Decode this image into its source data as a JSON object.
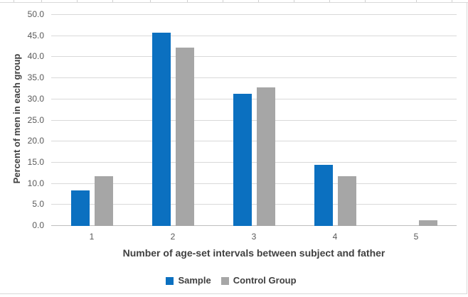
{
  "chart_data": {
    "type": "bar",
    "title": "",
    "categories": [
      "1",
      "2",
      "3",
      "4",
      "5"
    ],
    "series": [
      {
        "name": "Sample",
        "color": "#0b70c0",
        "values": [
          8.4,
          45.8,
          31.3,
          14.5,
          0
        ]
      },
      {
        "name": "Control Group",
        "color": "#a6a6a6",
        "values": [
          11.8,
          42.2,
          32.8,
          11.8,
          1.4
        ]
      }
    ],
    "xlabel": "Number of age-set intervals between subject and father",
    "ylabel": "Percent of men in each group",
    "ylim": [
      0,
      50
    ],
    "ytick_step": 5,
    "ytick_labels": [
      "0.0",
      "5.0",
      "10.0",
      "15.0",
      "20.0",
      "25.0",
      "30.0",
      "35.0",
      "40.0",
      "45.0",
      "50.0"
    ],
    "grid": true,
    "legend_position": "bottom"
  },
  "colors": {
    "gridline": "#d9d9d9",
    "axis_line": "#bfbfbf",
    "tick_text": "#595959",
    "title_text": "#404040",
    "background": "#ffffff",
    "sheet_line": "#d9d9d9"
  }
}
